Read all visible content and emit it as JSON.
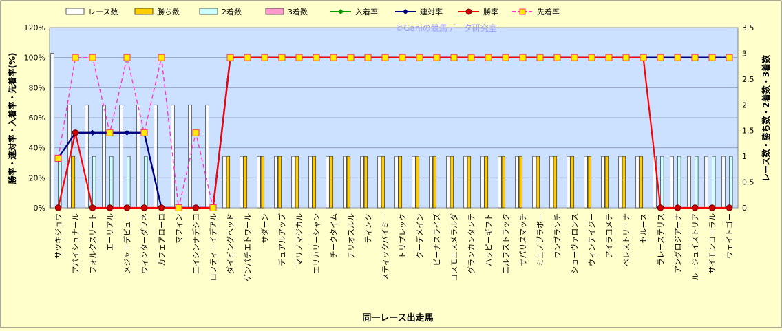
{
  "chart_data": {
    "type": "bar",
    "title": "",
    "watermark": "©Ganiの競馬データ研究室",
    "xlabel": "同一レース出走馬",
    "ylabel_left": "勝率・連対率・入着率・先着率(%)",
    "ylabel_right": "レース数・勝ち数・2着数・3着数",
    "ylim_left": [
      0,
      120
    ],
    "yticks_left": [
      "0%",
      "20%",
      "40%",
      "60%",
      "80%",
      "100%",
      "120%"
    ],
    "ylim_right": [
      0,
      3.5
    ],
    "yticks_right": [
      "0",
      "0.5",
      "1",
      "1.5",
      "2",
      "2.5",
      "3",
      "3.5"
    ],
    "grid": true,
    "legend_position": "top",
    "colors": {
      "race_count": "#ffffff",
      "wins": "#ffcc00",
      "second": "#ccffff",
      "third": "#ff99cc",
      "place_rate": "#009900",
      "rentai_rate": "#000080",
      "win_rate": "#ff0000",
      "senchaku_rate": "#ff33cc",
      "plot_bg": "#cce0ff",
      "frame_bg": "#ffffcc"
    },
    "categories": [
      "サツキジョウ",
      "アパイシュナール",
      "フォルクスリート",
      "エーリアル",
      "メジャーデビュー",
      "ウィンターダフネ",
      "カフェアローロ",
      "マフィン",
      "エイシンナデシコ",
      "ロフティーイデアル",
      "ダイビングヘッド",
      "ゲンパチエトワール",
      "サダーン",
      "デュアルアップ",
      "マリノマジカル",
      "エリカリーシャン",
      "チークタイム",
      "テリオスルル",
      "ティンク",
      "スティックバイミー",
      "トリプレック",
      "クーデメイン",
      "ピーナスライズ",
      "コスモエスメラルダ",
      "グランカンタンテ",
      "ハッピーギフト",
      "エルフストラック",
      "ザパリスマッチ",
      "ミエノブラボー",
      "ワンブランチ",
      "ショーヴァロンス",
      "ウィンテイジー",
      "アイラコメテ",
      "ベレストリーナ",
      "セルース",
      "ラレーステリス",
      "アングロジアーナ",
      "ルージュイストリア",
      "サイモンコーラル",
      "ウェイトゴー"
    ],
    "legend": [
      {
        "key": "race_count",
        "label": "レース数",
        "kind": "bar"
      },
      {
        "key": "wins",
        "label": "勝ち数",
        "kind": "bar"
      },
      {
        "key": "second",
        "label": "2着数",
        "kind": "bar"
      },
      {
        "key": "third",
        "label": "3着数",
        "kind": "bar"
      },
      {
        "key": "place_rate",
        "label": "入着率",
        "kind": "line"
      },
      {
        "key": "rentai_rate",
        "label": "連対率",
        "kind": "line"
      },
      {
        "key": "win_rate",
        "label": "勝率",
        "kind": "line"
      },
      {
        "key": "senchaku_rate",
        "label": "先着率",
        "kind": "dash"
      }
    ],
    "bar_series": {
      "race_count": [
        3,
        2,
        2,
        2,
        2,
        2,
        2,
        2,
        2,
        2,
        1,
        1,
        1,
        1,
        1,
        1,
        1,
        1,
        1,
        1,
        1,
        1,
        1,
        1,
        1,
        1,
        1,
        1,
        1,
        1,
        1,
        1,
        1,
        1,
        1,
        1,
        1,
        1,
        1,
        1
      ],
      "wins": [
        0,
        1,
        0,
        0,
        0,
        0,
        0,
        0,
        0,
        0,
        1,
        1,
        1,
        1,
        1,
        1,
        1,
        1,
        1,
        1,
        1,
        1,
        1,
        1,
        1,
        1,
        1,
        1,
        1,
        1,
        1,
        1,
        1,
        1,
        1,
        0,
        0,
        0,
        0,
        0
      ],
      "second": [
        1,
        0,
        1,
        1,
        1,
        1,
        0,
        0,
        0,
        0,
        0,
        0,
        0,
        0,
        0,
        0,
        0,
        0,
        0,
        0,
        0,
        0,
        0,
        0,
        0,
        0,
        0,
        0,
        0,
        0,
        0,
        0,
        0,
        0,
        0,
        1,
        1,
        1,
        1,
        1
      ],
      "third": [
        0,
        0,
        0,
        0,
        0,
        0,
        0,
        0,
        0,
        0,
        0,
        0,
        0,
        0,
        0,
        0,
        0,
        0,
        0,
        0,
        0,
        0,
        0,
        0,
        0,
        0,
        0,
        0,
        0,
        0,
        0,
        0,
        0,
        0,
        0,
        0,
        0,
        0,
        0,
        0
      ]
    },
    "line_series": {
      "place_rate": [
        33,
        50,
        50,
        50,
        50,
        50,
        0,
        0,
        0,
        0,
        100,
        100,
        100,
        100,
        100,
        100,
        100,
        100,
        100,
        100,
        100,
        100,
        100,
        100,
        100,
        100,
        100,
        100,
        100,
        100,
        100,
        100,
        100,
        100,
        100,
        100,
        100,
        100,
        100,
        100
      ],
      "rentai_rate": [
        33,
        50,
        50,
        50,
        50,
        50,
        0,
        0,
        0,
        0,
        100,
        100,
        100,
        100,
        100,
        100,
        100,
        100,
        100,
        100,
        100,
        100,
        100,
        100,
        100,
        100,
        100,
        100,
        100,
        100,
        100,
        100,
        100,
        100,
        100,
        100,
        100,
        100,
        100,
        100
      ],
      "win_rate": [
        0,
        50,
        0,
        0,
        0,
        0,
        0,
        0,
        0,
        0,
        100,
        100,
        100,
        100,
        100,
        100,
        100,
        100,
        100,
        100,
        100,
        100,
        100,
        100,
        100,
        100,
        100,
        100,
        100,
        100,
        100,
        100,
        100,
        100,
        100,
        0,
        0,
        0,
        0,
        0
      ],
      "senchaku_rate": [
        33,
        100,
        100,
        50,
        100,
        50,
        100,
        0,
        50,
        0,
        100,
        100,
        100,
        100,
        100,
        100,
        100,
        100,
        100,
        100,
        100,
        100,
        100,
        100,
        100,
        100,
        100,
        100,
        100,
        100,
        100,
        100,
        100,
        100,
        100,
        100,
        100,
        100,
        100,
        100
      ]
    }
  }
}
